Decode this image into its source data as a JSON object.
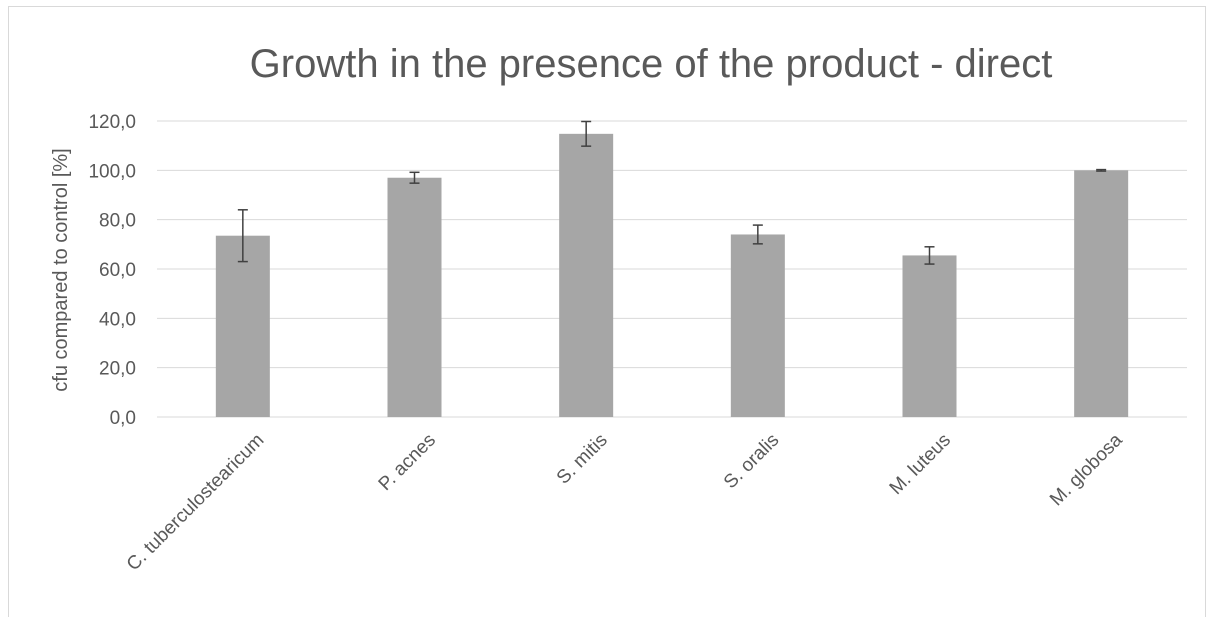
{
  "chart_data": {
    "type": "bar",
    "title": "Growth in the presence of the product - direct",
    "xlabel": "",
    "ylabel": "cfu compared to control [%]",
    "ylim": [
      0,
      120
    ],
    "yticks": [
      0,
      20,
      40,
      60,
      80,
      100,
      120
    ],
    "ytick_labels": [
      "0,0",
      "20,0",
      "40,0",
      "60,0",
      "80,0",
      "100,0",
      "120,0"
    ],
    "grid": true,
    "legend": "none",
    "bar_color": "#a6a6a6",
    "grid_color": "#d9d9d9",
    "text_color": "#595959",
    "categories": [
      "C. tuberculostearicum",
      "P. acnes",
      "S. mitis",
      "S. oralis",
      "M. luteus",
      "M. globosa"
    ],
    "values": [
      73.5,
      97.0,
      114.8,
      74.0,
      65.5,
      100.0
    ],
    "errors": [
      10.5,
      2.2,
      5.0,
      3.8,
      3.5,
      0.3
    ]
  }
}
